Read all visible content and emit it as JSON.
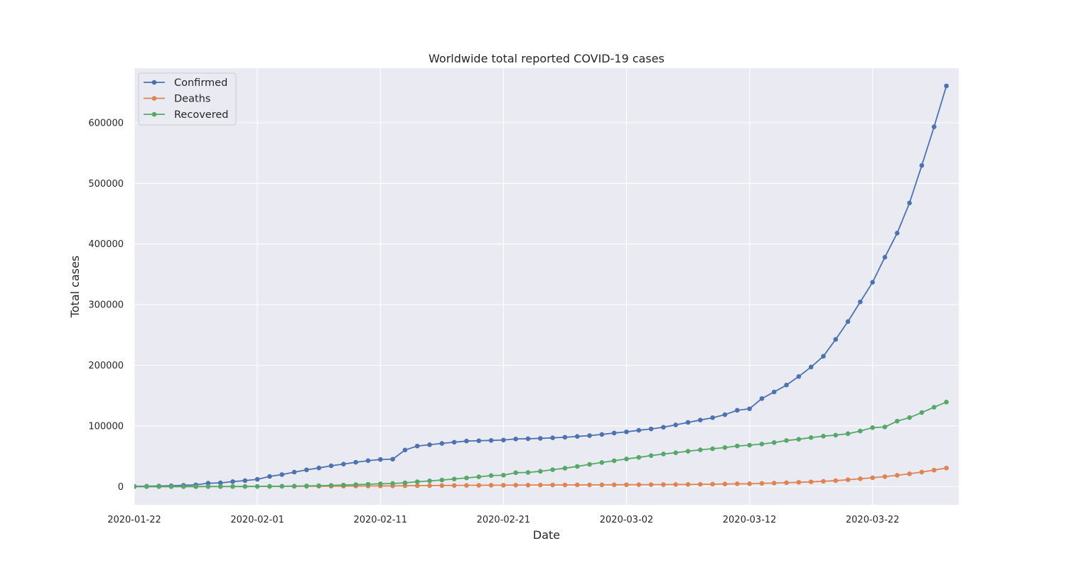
{
  "chart_data": {
    "type": "line",
    "title": "Worldwide total reported COVID-19 cases",
    "xlabel": "Date",
    "ylabel": "Total cases",
    "x_start": "2020-01-22",
    "x_end": "2020-03-29",
    "xlim": [
      "2020-01-22",
      "2020-03-29"
    ],
    "ylim": [
      -30000,
      690000
    ],
    "xticks": [
      "2020-01-22",
      "2020-02-01",
      "2020-02-11",
      "2020-02-21",
      "2020-03-02",
      "2020-03-12",
      "2020-03-22"
    ],
    "yticks": [
      0,
      100000,
      200000,
      300000,
      400000,
      500000,
      600000
    ],
    "grid": true,
    "legend_position": "top-left",
    "colors": {
      "background": "#eaeaf2",
      "grid": "#ffffff",
      "confirmed": "#4c72b0",
      "deaths": "#dd8452",
      "recovered": "#55a868"
    },
    "series": [
      {
        "name": "Confirmed",
        "color": "#4c72b0",
        "values": [
          555,
          654,
          941,
          1434,
          2118,
          2927,
          5578,
          6166,
          8234,
          9927,
          12038,
          16787,
          19881,
          23892,
          27635,
          30794,
          34391,
          37120,
          40150,
          42762,
          44802,
          45221,
          60368,
          66885,
          69030,
          71224,
          73258,
          75136,
          75639,
          76197,
          76823,
          78579,
          78965,
          79568,
          80413,
          81395,
          82754,
          84120,
          86011,
          88369,
          90306,
          92840,
          95120,
          97886,
          101801,
          105847,
          109821,
          113590,
          118620,
          125875,
          128343,
          145193,
          156097,
          167449,
          181546,
          197168,
          214915,
          242713,
          272167,
          304528,
          336953,
          378235,
          418045,
          467653,
          529591,
          593291,
          660706
        ]
      },
      {
        "name": "Deaths",
        "color": "#dd8452",
        "values": [
          17,
          18,
          26,
          42,
          56,
          82,
          131,
          133,
          171,
          213,
          259,
          362,
          426,
          492,
          564,
          634,
          719,
          806,
          906,
          1013,
          1113,
          1118,
          1371,
          1523,
          1666,
          1770,
          1868,
          2007,
          2122,
          2247,
          2251,
          2458,
          2469,
          2629,
          2708,
          2770,
          2814,
          2872,
          2941,
          2996,
          3085,
          3160,
          3254,
          3348,
          3460,
          3558,
          3802,
          3988,
          4262,
          4615,
          4720,
          5404,
          5819,
          6440,
          7126,
          7905,
          8733,
          9867,
          11299,
          12973,
          14623,
          16497,
          18615,
          21181,
          23970,
          27198,
          30652
        ]
      },
      {
        "name": "Recovered",
        "color": "#55a868",
        "values": [
          28,
          30,
          36,
          39,
          52,
          61,
          107,
          126,
          143,
          222,
          284,
          472,
          623,
          852,
          1124,
          1487,
          2011,
          2616,
          3244,
          3946,
          4683,
          5150,
          6295,
          8058,
          9395,
          10865,
          12583,
          14352,
          16121,
          18177,
          18890,
          22886,
          23394,
          25227,
          27905,
          30384,
          33277,
          36711,
          39782,
          42716,
          45602,
          48229,
          51171,
          53797,
          55866,
          58359,
          60694,
          62494,
          64404,
          67003,
          68324,
          70251,
          72624,
          76034,
          78088,
          80840,
          83207,
          84854,
          87256,
          91676,
          97243,
          98334,
          108000,
          113787,
          122150,
          130915,
          139415
        ]
      }
    ]
  }
}
